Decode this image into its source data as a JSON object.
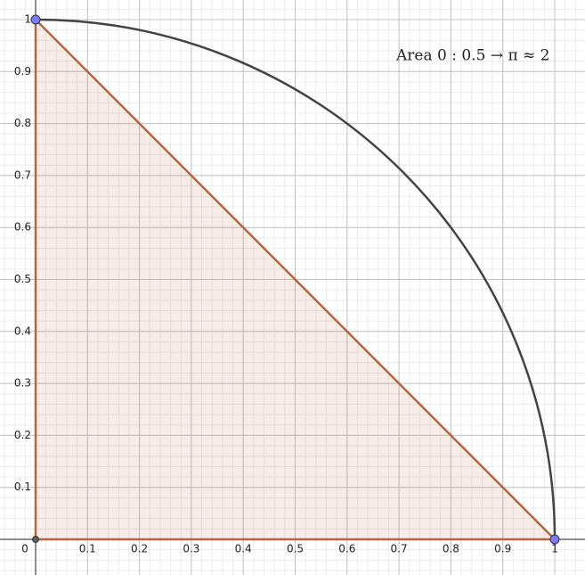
{
  "chart_data": {
    "type": "geometry",
    "xlim": [
      -0.0686,
      1.0583
    ],
    "ylim": [
      -0.0686,
      1.0377
    ],
    "xticks": [
      0,
      0.1,
      0.2,
      0.3,
      0.4,
      0.5,
      0.6,
      0.7,
      0.8,
      0.9,
      1
    ],
    "yticks": [
      0.1,
      0.2,
      0.3,
      0.4,
      0.5,
      0.6,
      0.7,
      0.8,
      0.9,
      1
    ],
    "grid": true,
    "minor_grid_step": 0.02,
    "annotation": "Area 0 : 0.5 → π ≈ 2",
    "polygon": {
      "vertices": [
        [
          0,
          0
        ],
        [
          1,
          0
        ],
        [
          0,
          1
        ]
      ],
      "color": "#b5653f"
    },
    "arc": {
      "center": [
        0,
        0
      ],
      "radius": 1,
      "color": "#444444"
    },
    "points": [
      {
        "x": 0,
        "y": 1,
        "color": "#7b7bff"
      },
      {
        "x": 1,
        "y": 0,
        "color": "#7b7bff"
      },
      {
        "x": 0,
        "y": 0,
        "color": "#5f5f5f"
      }
    ]
  }
}
